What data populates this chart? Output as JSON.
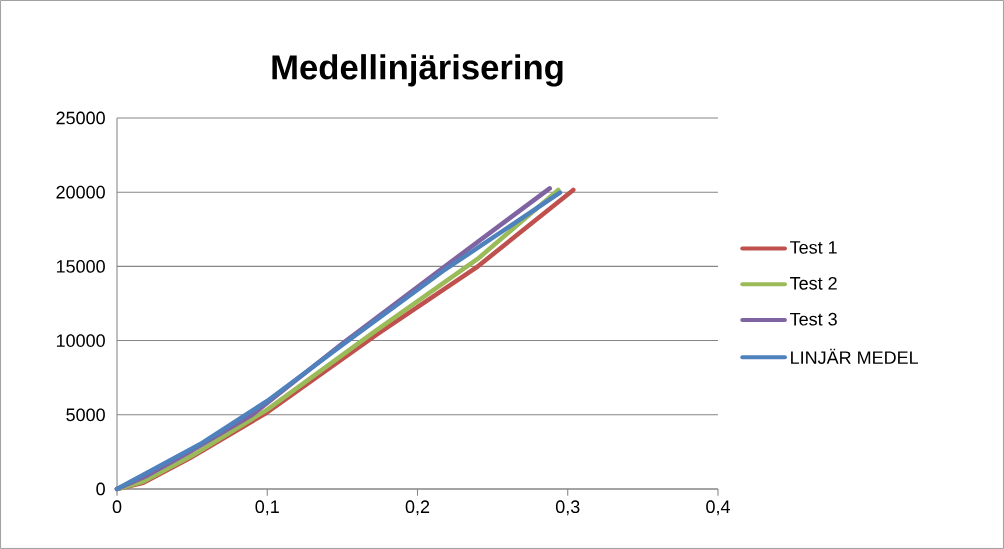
{
  "chart_data": {
    "type": "line",
    "title": "Medellinjärisering",
    "series": [
      {
        "name": "Test 1",
        "color": "#c0504d",
        "x": [
          0,
          0.0175,
          0.0486,
          0.0996,
          0.173,
          0.239,
          0.3037
        ],
        "values": [
          0,
          420,
          2090,
          5140,
          10420,
          14910,
          20150
        ]
      },
      {
        "name": "Test 2",
        "color": "#9bbb59",
        "x": [
          0,
          0.0175,
          0.05,
          0.1,
          0.17,
          0.24,
          0.2937
        ],
        "values": [
          0,
          500,
          2250,
          5350,
          10500,
          15500,
          20150
        ]
      },
      {
        "name": "Test 3",
        "color": "#8064a2",
        "x": [
          0,
          0.02,
          0.05,
          0.09,
          0.15,
          0.217,
          0.288
        ],
        "values": [
          0,
          900,
          2600,
          5000,
          9800,
          14910,
          20260
        ]
      },
      {
        "name": "LINJÄR MEDEL",
        "color": "#4f81bd",
        "x": [
          0,
          0.0552,
          0.1,
          0.1506,
          0.217,
          0.2948
        ],
        "values": [
          0,
          3010,
          5930,
          9750,
          14690,
          19970
        ]
      }
    ],
    "xlim": [
      0,
      0.4
    ],
    "ylim": [
      0,
      25000
    ],
    "xticks": [
      0,
      {
        "value": 0.1,
        "label": "0,1"
      },
      {
        "value": 0.2,
        "label": "0,2"
      },
      {
        "value": 0.3,
        "label": "0,3"
      },
      {
        "value": 0.4,
        "label": "0,4"
      }
    ],
    "yticks": [
      0,
      5000,
      10000,
      15000,
      20000,
      25000
    ],
    "grid": "y",
    "legend": "right",
    "marker": "none",
    "line_style": "solid"
  }
}
